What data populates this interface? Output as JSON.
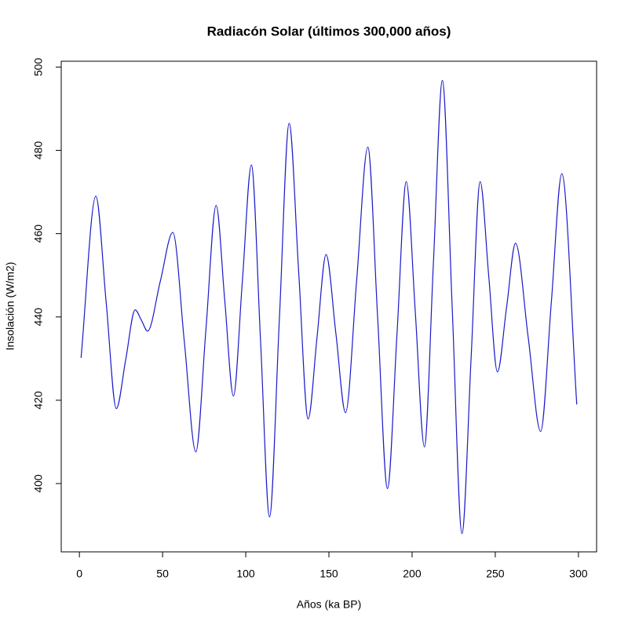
{
  "chart_data": {
    "type": "line",
    "title": "Radiacón Solar (últimos 300,000 años)",
    "x_label": "Años (ka BP)",
    "y_label": "Insolación (W/m2)",
    "color": "#1a1ac8",
    "xlim": [
      -10.92,
      310.92
    ],
    "ylim": [
      383.6,
      501.4
    ],
    "xticks": [
      0,
      50,
      100,
      150,
      200,
      250,
      300
    ],
    "yticks": [
      400,
      420,
      440,
      460,
      480,
      500
    ],
    "x": [
      1,
      9.9,
      16.1,
      22.2,
      27.9,
      33.5,
      37.3,
      41,
      48.6,
      56.2,
      63.1,
      70,
      76.1,
      82.2,
      87.4,
      92.6,
      98,
      103.4,
      108.9,
      114.3,
      120.2,
      126.1,
      131.8,
      137.5,
      142.9,
      148.3,
      154.2,
      160,
      166.7,
      173.4,
      179.3,
      185.2,
      190.9,
      196.5,
      202,
      207.4,
      212.8,
      218.2,
      224.1,
      230,
      235.5,
      240.9,
      246.1,
      251.3,
      256.8,
      262.2,
      269.8,
      277.3,
      283.7,
      290,
      299
    ],
    "values": [
      430.2,
      469,
      443.5,
      418,
      429.9,
      441.7,
      439.2,
      436.6,
      448.5,
      460.3,
      434,
      407.6,
      437.2,
      466.8,
      443.9,
      421,
      448.8,
      476.5,
      434.3,
      392,
      439.3,
      486.5,
      451,
      415.5,
      435.3,
      455,
      436,
      417,
      448.9,
      480.8,
      439.8,
      398.8,
      435.7,
      472.5,
      440.7,
      408.8,
      452.8,
      496.8,
      442.4,
      388,
      430.3,
      472.5,
      449.7,
      426.8,
      442.3,
      457.7,
      435.1,
      412.5,
      443.5,
      474.4,
      419
    ]
  }
}
